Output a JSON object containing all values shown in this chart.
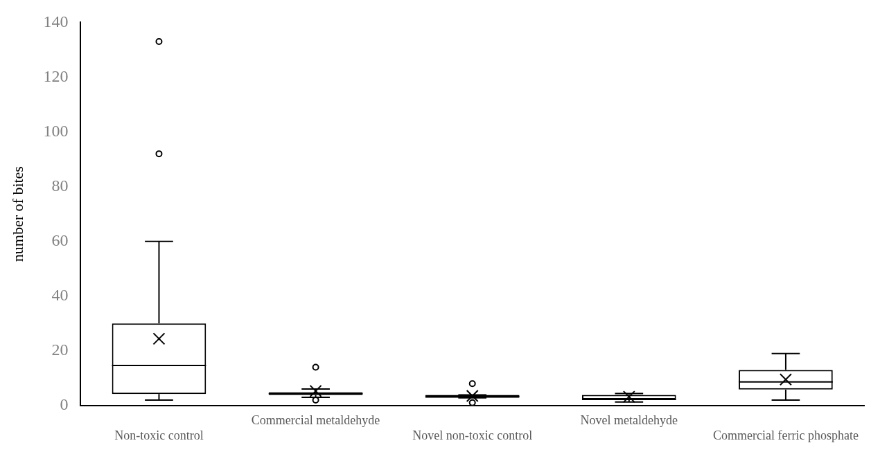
{
  "chart_data": {
    "type": "box",
    "ylabel": "number of bites",
    "categories": [
      "Non-toxic control",
      "Commercial metaldehyde",
      "Novel non-toxic control",
      "Novel metaldehyde",
      "Commercial ferric phosphate"
    ],
    "boxes": [
      {
        "low": 2,
        "q1": 4.2,
        "median": 14.6,
        "q3": 30,
        "high": 60,
        "mean": 24.4,
        "outliers": [
          92,
          133
        ]
      },
      {
        "low": 3,
        "q1": 3.8,
        "median": 4.3,
        "q3": 4.8,
        "high": 6,
        "mean": 5.3,
        "outliers": [
          14,
          2
        ]
      },
      {
        "low": 2.8,
        "q1": 2.8,
        "median": 3.3,
        "q3": 3.9,
        "high": 3.9,
        "mean": 3.5,
        "outliers": [
          8,
          1
        ]
      },
      {
        "low": 1.3,
        "q1": 2.2,
        "median": 2.2,
        "q3": 3.9,
        "high": 4.4,
        "mean": 3.2
      },
      {
        "low": 2,
        "q1": 5.8,
        "median": 8.6,
        "q3": 13,
        "high": 19,
        "mean": 9.5
      }
    ],
    "color": "#000000",
    "ylim": [
      0,
      140
    ],
    "yticks": [
      0,
      20,
      40,
      60,
      80,
      100,
      120,
      140
    ],
    "grid": false,
    "legend": false
  }
}
